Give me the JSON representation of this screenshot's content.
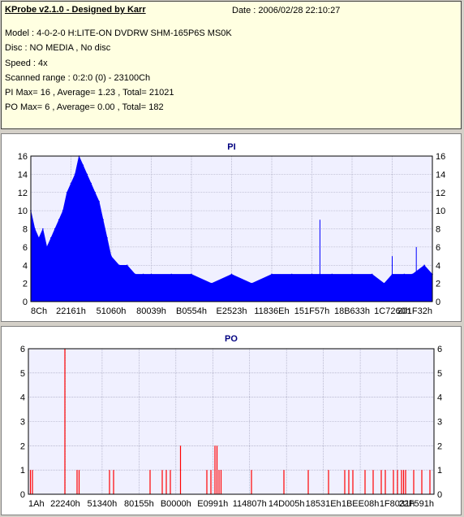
{
  "header": {
    "title": "KProbe v2.1.0 - Designed by Karr",
    "date": "Date : 2006/02/28 22:10:27",
    "lines": [
      "Model : 4-0-2-0 H:LITE-ON DVDRW SHM-165P6S MS0K",
      "Disc : NO MEDIA , No disc",
      "Speed : 4x",
      "Scanned range : 0:2:0 (0) - 23100Ch",
      "PI Max= 16 , Average= 1.23 , Total= 21021",
      "PO Max= 6 , Average= 0.00 , Total= 182"
    ]
  },
  "chart_data": [
    {
      "type": "area",
      "title": "PI",
      "ylim": [
        0,
        16
      ],
      "yticks": [
        0,
        2,
        4,
        6,
        8,
        10,
        12,
        14,
        16
      ],
      "xlim": [
        0,
        1
      ],
      "xticks": [
        "8Ch",
        "22161h",
        "51060h",
        "80039h",
        "B0554h",
        "E2523h",
        "11836Eh",
        "151F57h",
        "18B633h",
        "1C7260h",
        "201F32h"
      ],
      "colors": {
        "series": "#0000ff",
        "grid": "#9a9ab4",
        "title": "#000080"
      },
      "series": [
        {
          "x": [
            0.0,
            0.01,
            0.02,
            0.03,
            0.04,
            0.05,
            0.06,
            0.07,
            0.08,
            0.09,
            0.1,
            0.11,
            0.12,
            0.13,
            0.14,
            0.15,
            0.16,
            0.17,
            0.18,
            0.19,
            0.2,
            0.22,
            0.24,
            0.26,
            0.28,
            0.3,
            0.35,
            0.4,
            0.45,
            0.5,
            0.55,
            0.6,
            0.65,
            0.7,
            0.72,
            0.75,
            0.8,
            0.85,
            0.88,
            0.9,
            0.93,
            0.95,
            0.98,
            1.0
          ],
          "values": [
            10,
            8,
            7,
            8,
            6,
            7,
            8,
            9,
            10,
            12,
            13,
            14,
            16,
            15,
            14,
            13,
            12,
            11,
            9,
            7,
            5,
            4,
            4,
            3,
            3,
            3,
            3,
            3,
            2,
            3,
            2,
            3,
            3,
            3,
            3,
            3,
            3,
            3,
            2,
            3,
            3,
            3,
            4,
            3
          ]
        }
      ],
      "extra_peaks": [
        {
          "x": 0.72,
          "value": 9
        },
        {
          "x": 0.9,
          "value": 5
        },
        {
          "x": 0.96,
          "value": 6
        }
      ]
    },
    {
      "type": "bar",
      "title": "PO",
      "ylim": [
        0,
        6
      ],
      "yticks": [
        0,
        1,
        2,
        3,
        4,
        5,
        6
      ],
      "xlim": [
        0,
        1
      ],
      "xticks": [
        "1Ah",
        "22240h",
        "51340h",
        "80155h",
        "B0000h",
        "E0991h",
        "114807h",
        "14D005h",
        "18531Eh",
        "1BEE08h",
        "1F8031h",
        "22F591h"
      ],
      "colors": {
        "series": "#ff0000",
        "grid": "#9a9ab4",
        "title": "#000080"
      },
      "series": [
        {
          "x": [
            0.005,
            0.01,
            0.09,
            0.12,
            0.125,
            0.2,
            0.21,
            0.3,
            0.33,
            0.34,
            0.35,
            0.375,
            0.44,
            0.45,
            0.46,
            0.465,
            0.47,
            0.475,
            0.55,
            0.63,
            0.69,
            0.74,
            0.78,
            0.79,
            0.8,
            0.83,
            0.85,
            0.87,
            0.88,
            0.9,
            0.91,
            0.92,
            0.925,
            0.93,
            0.95,
            0.97,
            0.99
          ],
          "values": [
            1,
            1,
            6,
            1,
            1,
            1,
            1,
            1,
            1,
            1,
            1,
            2,
            1,
            1,
            2,
            2,
            1,
            1,
            1,
            1,
            1,
            1,
            1,
            1,
            1,
            1,
            1,
            1,
            1,
            1,
            1,
            1,
            1,
            1,
            1,
            1,
            1
          ]
        }
      ]
    }
  ]
}
